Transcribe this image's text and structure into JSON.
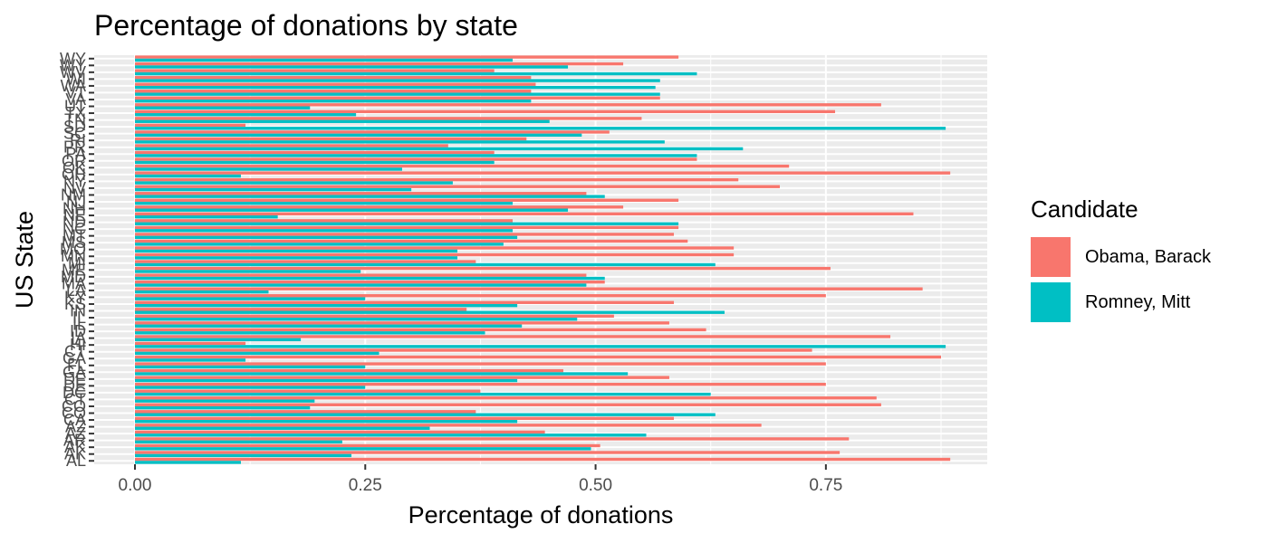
{
  "chart_data": {
    "type": "bar",
    "orientation": "horizontal",
    "position": "dodge",
    "title": "Percentage of donations by state",
    "xlabel": "Percentage of donations",
    "ylabel": "US State",
    "xlim": [
      0,
      0.92
    ],
    "xticks": [
      0.0,
      0.25,
      0.5,
      0.75
    ],
    "xtick_labels": [
      "0.00",
      "0.25",
      "0.50",
      "0.75"
    ],
    "grid": true,
    "legend": {
      "title": "Candidate",
      "position": "right"
    },
    "categories": [
      "AL",
      "AK",
      "AK",
      "AR",
      "AZ",
      "AZ",
      "CA",
      "CO",
      "CO",
      "CT",
      "DC",
      "DE",
      "DE",
      "GA",
      "FL",
      "GA",
      "CT",
      "HI",
      "IA",
      "ID",
      "IL",
      "IL",
      "IN",
      "KS",
      "KY",
      "LA",
      "MA",
      "MD",
      "ME",
      "MI",
      "MN",
      "MO",
      "MS",
      "MT",
      "NC",
      "ND",
      "NE",
      "NH",
      "NJ",
      "NM",
      "NV",
      "NY",
      "OH",
      "OK",
      "OR",
      "PA",
      "PR",
      "RI",
      "SC",
      "SD",
      "TN",
      "TX",
      "UT",
      "VA",
      "VT",
      "WA",
      "WI",
      "WV",
      "WY",
      "WY"
    ],
    "ytick_labels": [
      "AL",
      "AK",
      "AK",
      "AR",
      "AZ",
      "AZ",
      "CA",
      "CO",
      "CO",
      "CT",
      "DC",
      "DE",
      "DE",
      "GA",
      "FL",
      "GA",
      "CT",
      "HI",
      "IA",
      "ID",
      "IL",
      "IL",
      "IN",
      "KS",
      "KY",
      "LA",
      "MA",
      "MD",
      "ME",
      "MI",
      "MN",
      "MO",
      "MS",
      "MT",
      "NC",
      "ND",
      "NE",
      "NH",
      "NJ",
      "NM",
      "NV",
      "NY",
      "OH",
      "OK",
      "OR",
      "PA",
      "PR",
      "RI",
      "SC",
      "SD",
      "TN",
      "TX",
      "UT",
      "VA",
      "VT",
      "WA",
      "WI",
      "WV",
      "WY",
      "WY"
    ],
    "series": [
      {
        "name": "Obama, Barack",
        "color": "#F8766D",
        "values": [
          0.885,
          0.765,
          0.505,
          0.775,
          0.445,
          0.68,
          0.585,
          0.37,
          0.81,
          0.805,
          0.375,
          0.75,
          0.58,
          0.465,
          0.75,
          0.875,
          0.735,
          0.12,
          0.82,
          0.62,
          0.58,
          0.52,
          0.36,
          0.585,
          0.75,
          0.855,
          0.51,
          0.49,
          0.755,
          0.37,
          0.65,
          0.65,
          0.6,
          0.585,
          0.59,
          0.41,
          0.845,
          0.53,
          0.59,
          0.49,
          0.7,
          0.655,
          0.885,
          0.71,
          0.61,
          0.39,
          0.34,
          0.425,
          0.515,
          0.12,
          0.55,
          0.76,
          0.81,
          0.57,
          0.43,
          0.435,
          0.43,
          0.39,
          0.53,
          0.59
        ]
      },
      {
        "name": "Romney, Mitt",
        "color": "#00BFC4",
        "values": [
          0.115,
          0.235,
          0.495,
          0.225,
          0.555,
          0.32,
          0.415,
          0.63,
          0.19,
          0.195,
          0.625,
          0.25,
          0.415,
          0.535,
          0.25,
          0.12,
          0.265,
          0.88,
          0.18,
          0.38,
          0.42,
          0.48,
          0.64,
          0.415,
          0.25,
          0.145,
          0.49,
          0.51,
          0.245,
          0.63,
          0.35,
          0.35,
          0.4,
          0.415,
          0.41,
          0.59,
          0.155,
          0.47,
          0.41,
          0.51,
          0.3,
          0.345,
          0.115,
          0.29,
          0.39,
          0.61,
          0.66,
          0.575,
          0.485,
          0.88,
          0.45,
          0.24,
          0.19,
          0.43,
          0.57,
          0.565,
          0.57,
          0.61,
          0.47,
          0.41
        ]
      }
    ]
  }
}
